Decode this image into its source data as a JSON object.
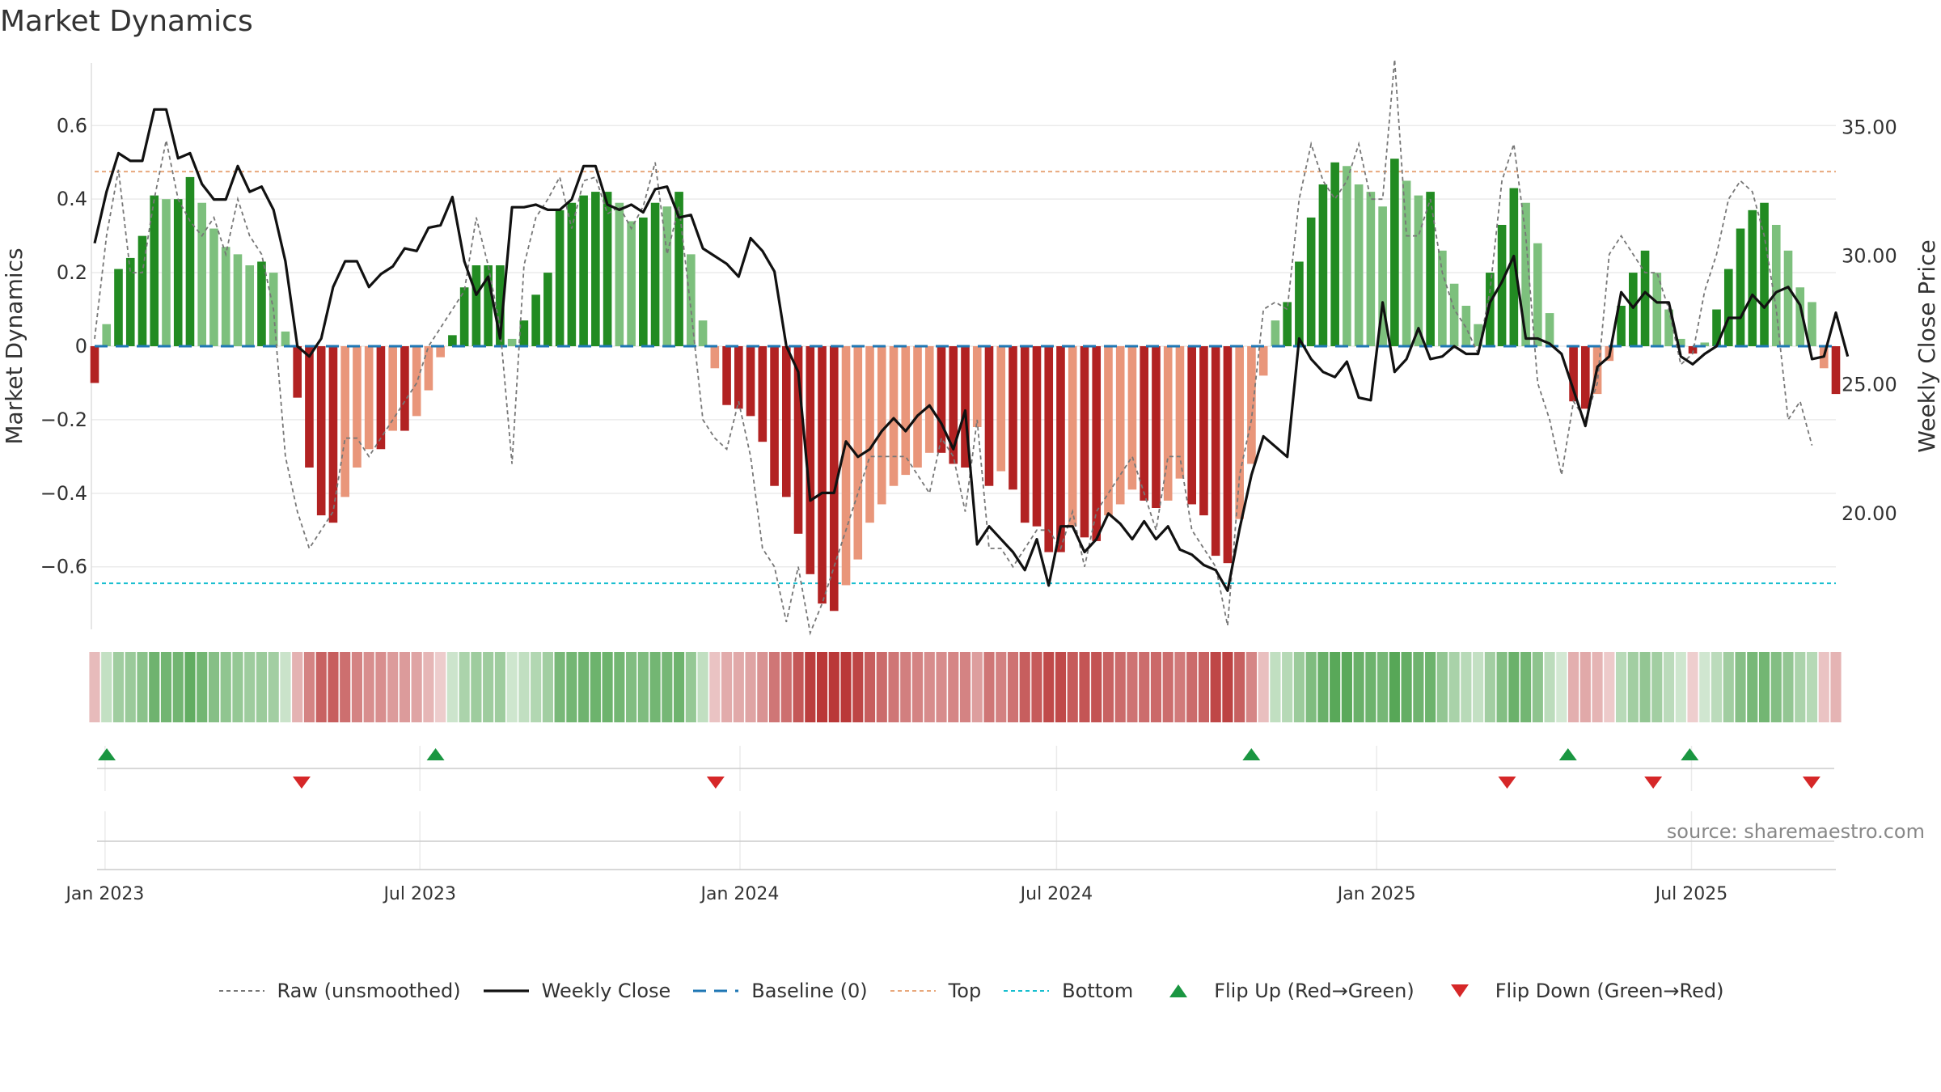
{
  "title": "Market Dynamics",
  "source": "source: sharemaestro.com",
  "colors": {
    "green_dark": "#228b22",
    "green_light": "#7dc07d",
    "red_dark": "#b22222",
    "red_light": "#e9967a",
    "price": "#111111",
    "raw": "#777777",
    "baseline": "#1f77b4",
    "top": "#e8a87c",
    "bottom": "#17becf",
    "flip_up": "#1a9641",
    "flip_down": "#d62728"
  },
  "chart_data": {
    "type": "bar",
    "title": "Market Dynamics",
    "ylabel": "Market Dynamics",
    "y2label": "Weekly Close Price",
    "ylim": [
      -0.77,
      0.77
    ],
    "y2lim": [
      15.5,
      37.5
    ],
    "yticks": [
      "0.6",
      "0.4",
      "0.2",
      "0",
      "−0.2",
      "−0.4",
      "−0.6"
    ],
    "yticks_values": [
      0.6,
      0.4,
      0.2,
      0,
      -0.2,
      -0.4,
      -0.6
    ],
    "y2ticks": [
      "35.00",
      "30.00",
      "25.00",
      "20.00"
    ],
    "y2ticks_values": [
      35,
      30,
      25,
      20
    ],
    "xticks": [
      "Jan 2023",
      "Jul 2023",
      "Jan 2024",
      "Jul 2024",
      "Jan 2025",
      "Jul 2025"
    ],
    "x_start": "2022-12-26",
    "x_end": "2025-09-22",
    "x_frequency": "weekly",
    "top_line": 0.475,
    "bottom_line": -0.645,
    "grid": true,
    "legend_position": "bottom",
    "series": [
      {
        "name": "Market Dynamics",
        "values": [
          -0.1,
          0.06,
          0.21,
          0.24,
          0.3,
          0.41,
          0.4,
          0.4,
          0.46,
          0.39,
          0.32,
          0.27,
          0.25,
          0.22,
          0.23,
          0.2,
          0.04,
          -0.14,
          -0.33,
          -0.46,
          -0.48,
          -0.41,
          -0.33,
          -0.28,
          -0.28,
          -0.23,
          -0.23,
          -0.19,
          -0.12,
          -0.03,
          0.03,
          0.16,
          0.22,
          0.22,
          0.22,
          0.02,
          0.07,
          0.14,
          0.2,
          0.37,
          0.39,
          0.41,
          0.42,
          0.42,
          0.39,
          0.34,
          0.35,
          0.39,
          0.38,
          0.42,
          0.25,
          0.07,
          -0.06,
          -0.16,
          -0.17,
          -0.19,
          -0.26,
          -0.38,
          -0.41,
          -0.51,
          -0.62,
          -0.7,
          -0.72,
          -0.65,
          -0.58,
          -0.48,
          -0.43,
          -0.38,
          -0.35,
          -0.33,
          -0.29,
          -0.29,
          -0.32,
          -0.33,
          -0.22,
          -0.38,
          -0.34,
          -0.39,
          -0.48,
          -0.49,
          -0.56,
          -0.56,
          -0.49,
          -0.52,
          -0.53,
          -0.46,
          -0.43,
          -0.39,
          -0.42,
          -0.44,
          -0.42,
          -0.36,
          -0.43,
          -0.46,
          -0.57,
          -0.59,
          -0.47,
          -0.32,
          -0.08,
          0.07,
          0.12,
          0.23,
          0.35,
          0.44,
          0.5,
          0.49,
          0.44,
          0.42,
          0.38,
          0.51,
          0.45,
          0.41,
          0.42,
          0.26,
          0.17,
          0.11,
          0.06,
          0.2,
          0.33,
          0.43,
          0.39,
          0.28,
          0.09,
          0,
          -0.15,
          -0.17,
          -0.13,
          -0.04,
          0.11,
          0.2,
          0.26,
          0.2,
          0.1,
          0.02,
          -0.02,
          0.01,
          0.1,
          0.21,
          0.32,
          0.37,
          0.39,
          0.33,
          0.26,
          0.16,
          0.12,
          -0.06,
          -0.13
        ]
      },
      {
        "name": "Raw (unsmoothed)",
        "values": [
          0.02,
          0.3,
          0.48,
          0.2,
          0.2,
          0.4,
          0.56,
          0.4,
          0.34,
          0.3,
          0.35,
          0.25,
          0.4,
          0.3,
          0.25,
          0.1,
          -0.3,
          -0.45,
          -0.55,
          -0.5,
          -0.45,
          -0.25,
          -0.25,
          -0.3,
          -0.25,
          -0.2,
          -0.15,
          -0.1,
          0,
          0.05,
          0.1,
          0.15,
          0.35,
          0.22,
          0.05,
          -0.32,
          0.22,
          0.35,
          0.4,
          0.46,
          0.32,
          0.45,
          0.46,
          0.36,
          0.38,
          0.32,
          0.38,
          0.5,
          0.25,
          0.38,
          0.1,
          -0.2,
          -0.25,
          -0.28,
          -0.15,
          -0.3,
          -0.55,
          -0.6,
          -0.75,
          -0.6,
          -0.78,
          -0.7,
          -0.6,
          -0.5,
          -0.4,
          -0.3,
          -0.3,
          -0.3,
          -0.3,
          -0.35,
          -0.4,
          -0.25,
          -0.3,
          -0.45,
          -0.2,
          -0.55,
          -0.55,
          -0.6,
          -0.55,
          -0.5,
          -0.5,
          -0.55,
          -0.45,
          -0.6,
          -0.45,
          -0.4,
          -0.35,
          -0.3,
          -0.4,
          -0.5,
          -0.3,
          -0.3,
          -0.5,
          -0.55,
          -0.6,
          -0.76,
          -0.35,
          -0.2,
          0.1,
          0.12,
          0.1,
          0.4,
          0.55,
          0.45,
          0.4,
          0.45,
          0.55,
          0.4,
          0.4,
          0.78,
          0.3,
          0.3,
          0.4,
          0.2,
          0.1,
          0.05,
          -0.02,
          0.15,
          0.45,
          0.55,
          0.3,
          -0.1,
          -0.2,
          -0.35,
          -0.15,
          -0.2,
          -0.1,
          0.25,
          0.3,
          0.25,
          0.2,
          0.2,
          0.1,
          -0.05,
          -0.02,
          0.15,
          0.25,
          0.4,
          0.45,
          0.42,
          0.3,
          0.1,
          -0.2,
          -0.15,
          -0.27
        ]
      },
      {
        "name": "Weekly Close",
        "values": [
          30.5,
          32.5,
          34,
          33.7,
          33.7,
          35.7,
          35.7,
          33.8,
          34,
          32.8,
          32.2,
          32.2,
          33.5,
          32.5,
          32.7,
          31.8,
          29.8,
          26.5,
          26.1,
          26.8,
          28.8,
          29.8,
          29.8,
          28.8,
          29.3,
          29.6,
          30.3,
          30.2,
          31.1,
          31.2,
          32.3,
          29.8,
          28.5,
          29.2,
          26.8,
          31.9,
          31.9,
          32,
          31.8,
          31.8,
          32.2,
          33.5,
          33.5,
          32,
          31.8,
          32,
          31.7,
          32.6,
          32.7,
          31.5,
          31.6,
          30.3,
          30,
          29.7,
          29.2,
          30.7,
          30.2,
          29.4,
          26.5,
          25.5,
          20.5,
          20.8,
          20.8,
          22.8,
          22.2,
          22.5,
          23.2,
          23.7,
          23.2,
          23.8,
          24.2,
          23.5,
          22.5,
          24,
          18.8,
          19.5,
          19,
          18.5,
          17.8,
          19,
          17.2,
          19.5,
          19.5,
          18.5,
          19,
          20,
          19.6,
          19,
          19.7,
          19,
          19.5,
          18.6,
          18.4,
          18,
          17.8,
          17,
          19.4,
          21.5,
          23,
          22.6,
          22.2,
          26.8,
          26,
          25.5,
          25.3,
          25.9,
          24.5,
          24.4,
          28.2,
          25.5,
          26,
          27.2,
          26,
          26.1,
          26.5,
          26.2,
          26.2,
          28.2,
          29,
          30,
          26.8,
          26.8,
          26.6,
          26.2,
          24.8,
          23.4,
          25.7,
          26.1,
          28.6,
          28,
          28.6,
          28.2,
          28.2,
          26.1,
          25.8,
          26.2,
          26.5,
          27.6,
          27.6,
          28.5,
          28,
          28.6,
          28.8,
          28.1,
          26,
          26.1,
          27.8,
          26.1
        ]
      }
    ],
    "strip_values": [
      -0.1,
      0.06,
      0.21,
      0.24,
      0.3,
      0.41,
      0.4,
      0.4,
      0.46,
      0.39,
      0.32,
      0.27,
      0.25,
      0.22,
      0.23,
      0.2,
      0.04,
      -0.14,
      -0.33,
      -0.46,
      -0.48,
      -0.41,
      -0.33,
      -0.28,
      -0.28,
      -0.23,
      -0.23,
      -0.19,
      -0.12,
      -0.03,
      0.03,
      0.16,
      0.22,
      0.22,
      0.22,
      0.02,
      0.07,
      0.14,
      0.2,
      0.37,
      0.39,
      0.41,
      0.42,
      0.42,
      0.39,
      0.34,
      0.35,
      0.39,
      0.38,
      0.42,
      0.25,
      0.07,
      -0.06,
      -0.16,
      -0.17,
      -0.19,
      -0.26,
      -0.38,
      -0.41,
      -0.51,
      -0.62,
      -0.7,
      -0.72,
      -0.65,
      -0.58,
      -0.48,
      -0.43,
      -0.38,
      -0.35,
      -0.33,
      -0.29,
      -0.29,
      -0.32,
      -0.33,
      -0.22,
      -0.38,
      -0.34,
      -0.39,
      -0.48,
      -0.49,
      -0.56,
      -0.56,
      -0.49,
      -0.52,
      -0.53,
      -0.46,
      -0.43,
      -0.39,
      -0.42,
      -0.44,
      -0.42,
      -0.36,
      -0.43,
      -0.46,
      -0.57,
      -0.59,
      -0.47,
      -0.32,
      -0.08,
      0.07,
      0.12,
      0.23,
      0.35,
      0.44,
      0.5,
      0.49,
      0.44,
      0.42,
      0.38,
      0.51,
      0.45,
      0.41,
      0.42,
      0.26,
      0.17,
      0.11,
      0.06,
      0.2,
      0.33,
      0.43,
      0.39,
      0.28,
      0.09,
      0,
      -0.15,
      -0.17,
      -0.13,
      -0.04,
      0.11,
      0.2,
      0.26,
      0.2,
      0.1,
      0.02,
      -0.02,
      0.01,
      0.1,
      0.21,
      0.32,
      0.37,
      0.39,
      0.33,
      0.26,
      0.16,
      0.12,
      -0.06,
      -0.13
    ],
    "flip_up_dates": [
      "2023-01-02",
      "2023-07-10",
      "2024-10-21",
      "2025-04-21",
      "2025-06-30"
    ],
    "flip_down_dates": [
      "2023-04-24",
      "2023-12-18",
      "2025-03-17",
      "2025-06-09",
      "2025-09-08"
    ]
  },
  "legend": [
    {
      "key": "raw",
      "label": "Raw (unsmoothed)",
      "style": "raw"
    },
    {
      "key": "close",
      "label": "Weekly Close",
      "style": "close"
    },
    {
      "key": "baseline",
      "label": "Baseline (0)",
      "style": "baseline"
    },
    {
      "key": "top",
      "label": "Top",
      "style": "top"
    },
    {
      "key": "bottom",
      "label": "Bottom",
      "style": "bottom"
    },
    {
      "key": "flip_up",
      "label": "Flip Up (Red→Green)",
      "style": "flip_up"
    },
    {
      "key": "flip_down",
      "label": "Flip Down (Green→Red)",
      "style": "flip_down"
    }
  ]
}
